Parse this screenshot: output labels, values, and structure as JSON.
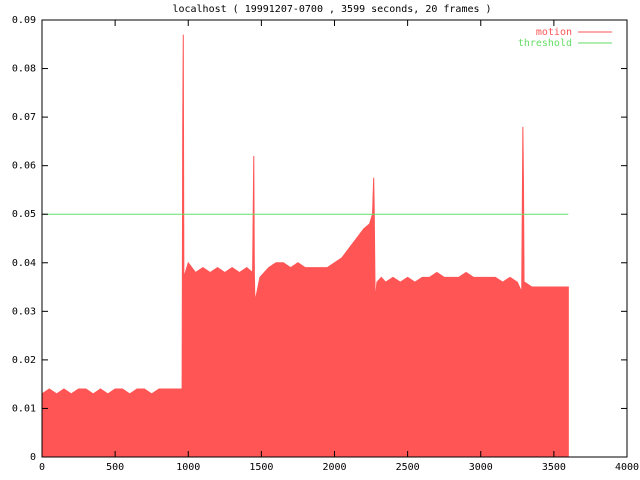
{
  "chart_data": {
    "type": "area",
    "title": "localhost ( 19991207-0700 , 3599 seconds, 20 frames )",
    "xlim": [
      0,
      4000
    ],
    "xticks": [
      0,
      500,
      1000,
      1500,
      2000,
      2500,
      3000,
      3500,
      4000
    ],
    "ylim": [
      0,
      0.09
    ],
    "yticks": [
      0,
      0.01,
      0.02,
      0.03,
      0.04,
      0.05,
      0.06,
      0.07,
      0.08,
      0.09
    ],
    "grid": false,
    "legend": "top-right",
    "series": [
      {
        "name": "motion",
        "color": "#ff5555",
        "x": [
          0,
          50,
          100,
          150,
          200,
          250,
          300,
          350,
          400,
          450,
          500,
          550,
          600,
          650,
          700,
          750,
          800,
          850,
          900,
          950,
          958,
          962,
          966,
          970,
          1000,
          1050,
          1100,
          1150,
          1200,
          1250,
          1300,
          1350,
          1400,
          1440,
          1448,
          1452,
          1456,
          1470,
          1490,
          1520,
          1550,
          1600,
          1650,
          1700,
          1750,
          1800,
          1850,
          1900,
          1950,
          2000,
          2050,
          2100,
          2150,
          2200,
          2240,
          2260,
          2268,
          2272,
          2278,
          2290,
          2320,
          2350,
          2400,
          2450,
          2500,
          2550,
          2600,
          2650,
          2700,
          2750,
          2800,
          2850,
          2900,
          2950,
          3000,
          3050,
          3100,
          3150,
          3200,
          3250,
          3280,
          3288,
          3292,
          3296,
          3300,
          3350,
          3400,
          3450,
          3500,
          3550,
          3599
        ],
        "values": [
          0.013,
          0.014,
          0.013,
          0.014,
          0.013,
          0.014,
          0.014,
          0.013,
          0.014,
          0.013,
          0.014,
          0.014,
          0.013,
          0.014,
          0.014,
          0.013,
          0.014,
          0.014,
          0.014,
          0.014,
          0.014,
          0.067,
          0.087,
          0.037,
          0.04,
          0.038,
          0.039,
          0.038,
          0.039,
          0.038,
          0.039,
          0.038,
          0.039,
          0.038,
          0.062,
          0.038,
          0.032,
          0.034,
          0.037,
          0.038,
          0.039,
          0.04,
          0.04,
          0.039,
          0.04,
          0.039,
          0.039,
          0.039,
          0.039,
          0.04,
          0.041,
          0.043,
          0.045,
          0.047,
          0.048,
          0.05,
          0.0575,
          0.05,
          0.032,
          0.036,
          0.037,
          0.036,
          0.037,
          0.036,
          0.037,
          0.036,
          0.037,
          0.037,
          0.038,
          0.037,
          0.037,
          0.037,
          0.038,
          0.037,
          0.037,
          0.037,
          0.037,
          0.036,
          0.037,
          0.036,
          0.034,
          0.068,
          0.057,
          0.036,
          0.036,
          0.035,
          0.035,
          0.035,
          0.035,
          0.035,
          0.035
        ]
      },
      {
        "name": "threshold",
        "color": "#66dd66",
        "x": [
          0,
          3599
        ],
        "values": [
          0.05,
          0.05
        ]
      }
    ]
  }
}
